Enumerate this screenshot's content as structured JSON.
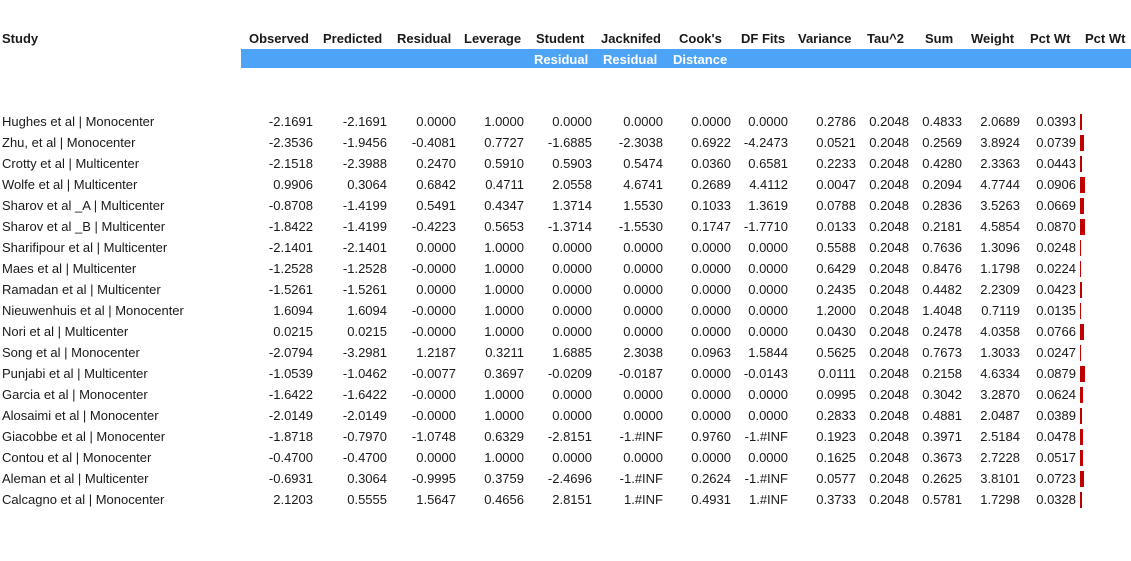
{
  "headers": {
    "study": "Study",
    "observed": "Observed",
    "predicted": "Predicted",
    "residual": "Residual",
    "leverage": "Leverage",
    "student": "Student",
    "jacknifed": "Jacknifed",
    "cooks": "Cook's",
    "dffits": "DF Fits",
    "variance": "Variance",
    "tau2": "Tau^2",
    "sum": "Sum",
    "weight": "Weight",
    "pctwt": "Pct Wt",
    "pctwt2": "Pct Wt"
  },
  "subheaders": {
    "student": "Residual",
    "jacknifed": "Residual",
    "cooks": "Distance"
  },
  "colors": {
    "header_band": "#4da3f5",
    "bar": "#c00000"
  },
  "rows": [
    {
      "study": "Hughes et al | Monocenter",
      "observed": "-2.1691",
      "predicted": "-2.1691",
      "residual": "0.0000",
      "leverage": "1.0000",
      "student": "0.0000",
      "jacknifed": "0.0000",
      "cooks": "0.0000",
      "dffits": "0.0000",
      "variance": "0.2786",
      "tau2": "0.2048",
      "sum": "0.4833",
      "weight": "2.0689",
      "pctwt": "0.0393",
      "pct": 0.0393
    },
    {
      "study": "Zhu, et al | Monocenter",
      "observed": "-2.3536",
      "predicted": "-1.9456",
      "residual": "-0.4081",
      "leverage": "0.7727",
      "student": "-1.6885",
      "jacknifed": "-2.3038",
      "cooks": "0.6922",
      "dffits": "-4.2473",
      "variance": "0.0521",
      "tau2": "0.2048",
      "sum": "0.2569",
      "weight": "3.8924",
      "pctwt": "0.0739",
      "pct": 0.0739
    },
    {
      "study": "Crotty et al | Multicenter",
      "observed": "-2.1518",
      "predicted": "-2.3988",
      "residual": "0.2470",
      "leverage": "0.5910",
      "student": "0.5903",
      "jacknifed": "0.5474",
      "cooks": "0.0360",
      "dffits": "0.6581",
      "variance": "0.2233",
      "tau2": "0.2048",
      "sum": "0.4280",
      "weight": "2.3363",
      "pctwt": "0.0443",
      "pct": 0.0443
    },
    {
      "study": "Wolfe et al | Multicenter",
      "observed": "0.9906",
      "predicted": "0.3064",
      "residual": "0.6842",
      "leverage": "0.4711",
      "student": "2.0558",
      "jacknifed": "4.6741",
      "cooks": "0.2689",
      "dffits": "4.4112",
      "variance": "0.0047",
      "tau2": "0.2048",
      "sum": "0.2094",
      "weight": "4.7744",
      "pctwt": "0.0906",
      "pct": 0.0906
    },
    {
      "study": "Sharov et al _A | Multicenter",
      "observed": "-0.8708",
      "predicted": "-1.4199",
      "residual": "0.5491",
      "leverage": "0.4347",
      "student": "1.3714",
      "jacknifed": "1.5530",
      "cooks": "0.1033",
      "dffits": "1.3619",
      "variance": "0.0788",
      "tau2": "0.2048",
      "sum": "0.2836",
      "weight": "3.5263",
      "pctwt": "0.0669",
      "pct": 0.0669
    },
    {
      "study": "Sharov et al _B | Multicenter",
      "observed": "-1.8422",
      "predicted": "-1.4199",
      "residual": "-0.4223",
      "leverage": "0.5653",
      "student": "-1.3714",
      "jacknifed": "-1.5530",
      "cooks": "0.1747",
      "dffits": "-1.7710",
      "variance": "0.0133",
      "tau2": "0.2048",
      "sum": "0.2181",
      "weight": "4.5854",
      "pctwt": "0.0870",
      "pct": 0.087
    },
    {
      "study": "Sharifipour et al | Multicenter",
      "observed": "-2.1401",
      "predicted": "-2.1401",
      "residual": "0.0000",
      "leverage": "1.0000",
      "student": "0.0000",
      "jacknifed": "0.0000",
      "cooks": "0.0000",
      "dffits": "0.0000",
      "variance": "0.5588",
      "tau2": "0.2048",
      "sum": "0.7636",
      "weight": "1.3096",
      "pctwt": "0.0248",
      "pct": 0.0248
    },
    {
      "study": "Maes et al | Multicenter",
      "observed": "-1.2528",
      "predicted": "-1.2528",
      "residual": "-0.0000",
      "leverage": "1.0000",
      "student": "0.0000",
      "jacknifed": "0.0000",
      "cooks": "0.0000",
      "dffits": "0.0000",
      "variance": "0.6429",
      "tau2": "0.2048",
      "sum": "0.8476",
      "weight": "1.1798",
      "pctwt": "0.0224",
      "pct": 0.0224
    },
    {
      "study": "Ramadan et al  | Multicenter",
      "observed": "-1.5261",
      "predicted": "-1.5261",
      "residual": "0.0000",
      "leverage": "1.0000",
      "student": "0.0000",
      "jacknifed": "0.0000",
      "cooks": "0.0000",
      "dffits": "0.0000",
      "variance": "0.2435",
      "tau2": "0.2048",
      "sum": "0.4482",
      "weight": "2.2309",
      "pctwt": "0.0423",
      "pct": 0.0423
    },
    {
      "study": "Nieuwenhuis et al | Monocenter",
      "observed": "1.6094",
      "predicted": "1.6094",
      "residual": "-0.0000",
      "leverage": "1.0000",
      "student": "0.0000",
      "jacknifed": "0.0000",
      "cooks": "0.0000",
      "dffits": "0.0000",
      "variance": "1.2000",
      "tau2": "0.2048",
      "sum": "1.4048",
      "weight": "0.7119",
      "pctwt": "0.0135",
      "pct": 0.0135
    },
    {
      "study": "Nori et al | Multicenter",
      "observed": "0.0215",
      "predicted": "0.0215",
      "residual": "-0.0000",
      "leverage": "1.0000",
      "student": "0.0000",
      "jacknifed": "0.0000",
      "cooks": "0.0000",
      "dffits": "0.0000",
      "variance": "0.0430",
      "tau2": "0.2048",
      "sum": "0.2478",
      "weight": "4.0358",
      "pctwt": "0.0766",
      "pct": 0.0766
    },
    {
      "study": "Song et al | Monocenter",
      "observed": "-2.0794",
      "predicted": "-3.2981",
      "residual": "1.2187",
      "leverage": "0.3211",
      "student": "1.6885",
      "jacknifed": "2.3038",
      "cooks": "0.0963",
      "dffits": "1.5844",
      "variance": "0.5625",
      "tau2": "0.2048",
      "sum": "0.7673",
      "weight": "1.3033",
      "pctwt": "0.0247",
      "pct": 0.0247
    },
    {
      "study": "Punjabi et al | Multicenter",
      "observed": "-1.0539",
      "predicted": "-1.0462",
      "residual": "-0.0077",
      "leverage": "0.3697",
      "student": "-0.0209",
      "jacknifed": "-0.0187",
      "cooks": "0.0000",
      "dffits": "-0.0143",
      "variance": "0.0111",
      "tau2": "0.2048",
      "sum": "0.2158",
      "weight": "4.6334",
      "pctwt": "0.0879",
      "pct": 0.0879
    },
    {
      "study": "Garcia et al | Monocenter",
      "observed": "-1.6422",
      "predicted": "-1.6422",
      "residual": "-0.0000",
      "leverage": "1.0000",
      "student": "0.0000",
      "jacknifed": "0.0000",
      "cooks": "0.0000",
      "dffits": "0.0000",
      "variance": "0.0995",
      "tau2": "0.2048",
      "sum": "0.3042",
      "weight": "3.2870",
      "pctwt": "0.0624",
      "pct": 0.0624
    },
    {
      "study": "Alosaimi et al | Monocenter",
      "observed": "-2.0149",
      "predicted": "-2.0149",
      "residual": "-0.0000",
      "leverage": "1.0000",
      "student": "0.0000",
      "jacknifed": "0.0000",
      "cooks": "0.0000",
      "dffits": "0.0000",
      "variance": "0.2833",
      "tau2": "0.2048",
      "sum": "0.4881",
      "weight": "2.0487",
      "pctwt": "0.0389",
      "pct": 0.0389
    },
    {
      "study": "Giacobbe et al | Monocenter",
      "observed": "-1.8718",
      "predicted": "-0.7970",
      "residual": "-1.0748",
      "leverage": "0.6329",
      "student": "-2.8151",
      "jacknifed": "-1.#INF",
      "cooks": "0.9760",
      "dffits": "-1.#INF",
      "variance": "0.1923",
      "tau2": "0.2048",
      "sum": "0.3971",
      "weight": "2.5184",
      "pctwt": "0.0478",
      "pct": 0.0478
    },
    {
      "study": "Contou et al | Monocenter",
      "observed": "-0.4700",
      "predicted": "-0.4700",
      "residual": "0.0000",
      "leverage": "1.0000",
      "student": "0.0000",
      "jacknifed": "0.0000",
      "cooks": "0.0000",
      "dffits": "0.0000",
      "variance": "0.1625",
      "tau2": "0.2048",
      "sum": "0.3673",
      "weight": "2.7228",
      "pctwt": "0.0517",
      "pct": 0.0517
    },
    {
      "study": "Aleman et al | Multicenter",
      "observed": "-0.6931",
      "predicted": "0.3064",
      "residual": "-0.9995",
      "leverage": "0.3759",
      "student": "-2.4696",
      "jacknifed": "-1.#INF",
      "cooks": "0.2624",
      "dffits": "-1.#INF",
      "variance": "0.0577",
      "tau2": "0.2048",
      "sum": "0.2625",
      "weight": "3.8101",
      "pctwt": "0.0723",
      "pct": 0.0723
    },
    {
      "study": "Calcagno et al | Monocenter",
      "observed": "2.1203",
      "predicted": "0.5555",
      "residual": "1.5647",
      "leverage": "0.4656",
      "student": "2.8151",
      "jacknifed": "1.#INF",
      "cooks": "0.4931",
      "dffits": "1.#INF",
      "variance": "0.3733",
      "tau2": "0.2048",
      "sum": "0.5781",
      "weight": "1.7298",
      "pctwt": "0.0328",
      "pct": 0.0328
    }
  ]
}
